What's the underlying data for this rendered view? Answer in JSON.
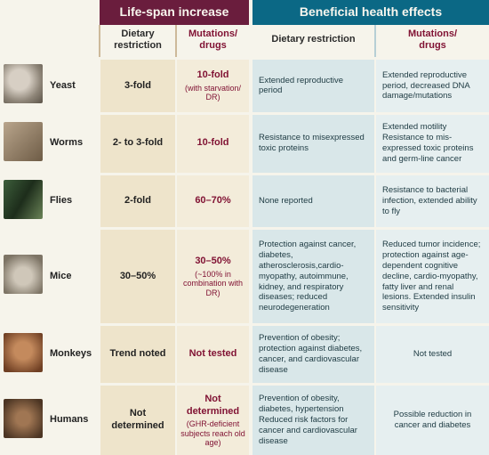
{
  "headers": {
    "life": "Life-span increase",
    "benefits": "Beneficial health effects",
    "dr": "Dietary restriction",
    "md_l1": "Mutations/",
    "md_l2": "drugs"
  },
  "rows": [
    {
      "species": "Yeast",
      "thumb": "yeast",
      "life_dr": "3-fold",
      "life_md": "10-fold",
      "life_md_sub": "(with starvation/ DR)",
      "ben_dr": "Extended reproductive period",
      "ben_md": "Extended reproductive period, decreased DNA damage/mutations"
    },
    {
      "species": "Worms",
      "thumb": "worms",
      "life_dr": "2- to 3-fold",
      "life_md": "10-fold",
      "life_md_sub": "",
      "ben_dr": "Resistance to misexpressed toxic proteins",
      "ben_md": "Extended motility Resistance to mis-expressed toxic proteins and germ-line cancer"
    },
    {
      "species": "Flies",
      "thumb": "flies",
      "life_dr": "2-fold",
      "life_md": "60–70%",
      "life_md_sub": "",
      "ben_dr": "None reported",
      "ben_md": "Resistance to bacterial infection, extended ability to fly"
    },
    {
      "species": "Mice",
      "thumb": "mice",
      "life_dr": "30–50%",
      "life_md": "30–50%",
      "life_md_sub": "(~100% in combination with DR)",
      "ben_dr": "Protection against cancer, diabetes, atherosclerosis,cardio-myopathy, autoimmune, kidney, and respiratory diseases; reduced neurodegeneration",
      "ben_md": "Reduced tumor incidence; protection against age-dependent cognitive decline, cardio-myopathy, fatty liver and renal lesions. Extended insulin sensitivity"
    },
    {
      "species": "Monkeys",
      "thumb": "monkeys",
      "life_dr": "Trend noted",
      "life_md": "Not tested",
      "life_md_sub": "",
      "ben_dr": "Prevention of obesity; protection against diabetes, cancer, and cardiovascular disease",
      "ben_md": "Not tested",
      "ben_md_center": true
    },
    {
      "species": "Humans",
      "thumb": "humans",
      "life_dr": "Not determined",
      "life_md": "Not determined",
      "life_md_sub": "(GHR-deficient subjects reach old age)",
      "ben_dr": "Prevention of obesity, diabetes, hypertension Reduced risk factors for cancer and cardiovascular disease",
      "ben_md": "Possible reduction in cancer and diabetes",
      "ben_md_center": true
    }
  ]
}
